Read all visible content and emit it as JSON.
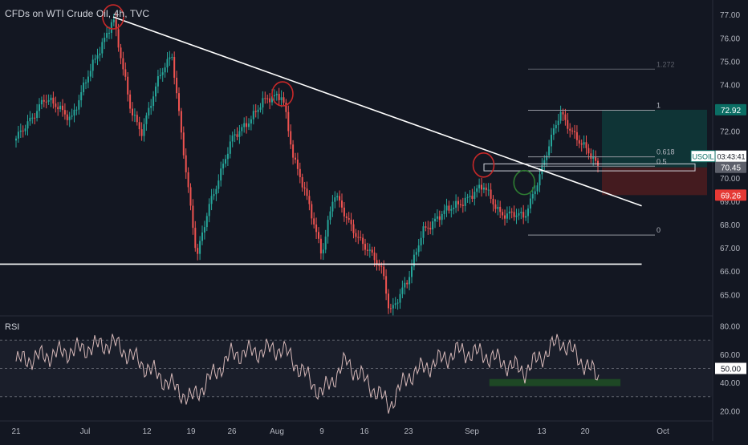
{
  "header": {
    "title": "CFDs on WTI Crude Oil, 4h, TVC"
  },
  "rsi_panel": {
    "label": "RSI",
    "current_value": "50.00",
    "levels": [
      70,
      50,
      30
    ],
    "yticks": [
      "80.00",
      "60.00",
      "50.00",
      "40.00",
      "20.00"
    ],
    "ylim": [
      14,
      86
    ]
  },
  "price_axis": {
    "ticks": [
      "77.00",
      "76.00",
      "75.00",
      "74.00",
      "73.00",
      "72.00",
      "71.00",
      "70.00",
      "69.00",
      "68.00",
      "67.00",
      "66.00",
      "65.00"
    ],
    "ylim": [
      64.15,
      77.35
    ]
  },
  "time_axis": {
    "labels": [
      "21",
      "Jul",
      "12",
      "19",
      "26",
      "Aug",
      "9",
      "16",
      "23",
      "Sep",
      "13",
      "20",
      "Oct"
    ]
  },
  "price_labels": {
    "target": "72.92",
    "symbol": "USOIL",
    "countdown": "03:43:41",
    "current": "70.45",
    "stop": "69.26"
  },
  "fibonacci": {
    "levels": [
      "1.272",
      "1",
      "0.618",
      "0.5",
      "0"
    ],
    "prices": [
      74.66,
      72.9,
      70.9,
      70.5,
      67.55
    ]
  },
  "colors": {
    "background": "#131722",
    "up": "#26a69a",
    "down": "#ef5350",
    "rsi_line": "#d6b8b8",
    "trendline": "#ffffff",
    "circle": "#c62828",
    "breakout_circle": "#2e7d32",
    "target_zone": "#0f3a3a",
    "stop_zone": "#4a1c1f",
    "rsi_support": "#1f4d25"
  },
  "chart_data": {
    "type": "candlestick",
    "title": "CFDs on WTI Crude Oil, 4h, TVC",
    "x_range": [
      "Jun 21",
      "Oct 1"
    ],
    "y_range": [
      64.15,
      77.35
    ],
    "anchors": [
      {
        "date": "Jun 21",
        "price": 71.6
      },
      {
        "date": "Jun 25",
        "price": 73.4
      },
      {
        "date": "Jun 29",
        "price": 72.6
      },
      {
        "date": "Jul 6",
        "price": 76.9
      },
      {
        "date": "Jul 9",
        "price": 73.0
      },
      {
        "date": "Jul 11",
        "price": 72.0
      },
      {
        "date": "Jul 14",
        "price": 74.3
      },
      {
        "date": "Jul 16",
        "price": 75.3
      },
      {
        "date": "Jul 19",
        "price": 68.5
      },
      {
        "date": "Jul 20",
        "price": 66.5
      },
      {
        "date": "Jul 22",
        "price": 68.8
      },
      {
        "date": "Jul 26",
        "price": 71.6
      },
      {
        "date": "Jul 30",
        "price": 73.2
      },
      {
        "date": "Aug 2",
        "price": 73.6
      },
      {
        "date": "Aug 4",
        "price": 70.8
      },
      {
        "date": "Aug 7",
        "price": 68.6
      },
      {
        "date": "Aug 9",
        "price": 66.8
      },
      {
        "date": "Aug 11",
        "price": 69.3
      },
      {
        "date": "Aug 13",
        "price": 68.3
      },
      {
        "date": "Aug 16",
        "price": 67.1
      },
      {
        "date": "Aug 19",
        "price": 65.9
      },
      {
        "date": "Aug 20",
        "price": 64.3
      },
      {
        "date": "Aug 23",
        "price": 65.6
      },
      {
        "date": "Aug 25",
        "price": 67.8
      },
      {
        "date": "Aug 30",
        "price": 68.9
      },
      {
        "date": "Sep 3",
        "price": 69.6
      },
      {
        "date": "Sep 6",
        "price": 68.5
      },
      {
        "date": "Sep 10",
        "price": 68.3
      },
      {
        "date": "Sep 13",
        "price": 70.4
      },
      {
        "date": "Sep 16",
        "price": 72.8
      },
      {
        "date": "Sep 19",
        "price": 71.6
      },
      {
        "date": "Sep 22",
        "price": 70.4
      }
    ],
    "rsi_anchors": [
      {
        "date": "Jun 21",
        "value": 55
      },
      {
        "date": "Jul 6",
        "value": 68
      },
      {
        "date": "Jul 19",
        "value": 28
      },
      {
        "date": "Jul 26",
        "value": 60
      },
      {
        "date": "Aug 2",
        "value": 64
      },
      {
        "date": "Aug 9",
        "value": 32
      },
      {
        "date": "Aug 13",
        "value": 55
      },
      {
        "date": "Aug 20",
        "value": 24
      },
      {
        "date": "Aug 23",
        "value": 45
      },
      {
        "date": "Aug 30",
        "value": 62
      },
      {
        "date": "Sep 3",
        "value": 60
      },
      {
        "date": "Sep 10",
        "value": 48
      },
      {
        "date": "Sep 16",
        "value": 70
      },
      {
        "date": "Sep 22",
        "value": 43
      }
    ],
    "trendline": {
      "start": {
        "date": "Jul 6",
        "price": 76.9
      },
      "end": {
        "date": "Sep 28",
        "price": 68.8
      }
    },
    "support_line": {
      "price": 66.3,
      "end_date": "Sep 28"
    },
    "long_position": {
      "entry": 70.45,
      "target": 72.92,
      "stop": 69.26
    },
    "rsi_support_zone": {
      "start_date": "Sep 4",
      "end_date": "Sep 25",
      "value": 40
    }
  }
}
